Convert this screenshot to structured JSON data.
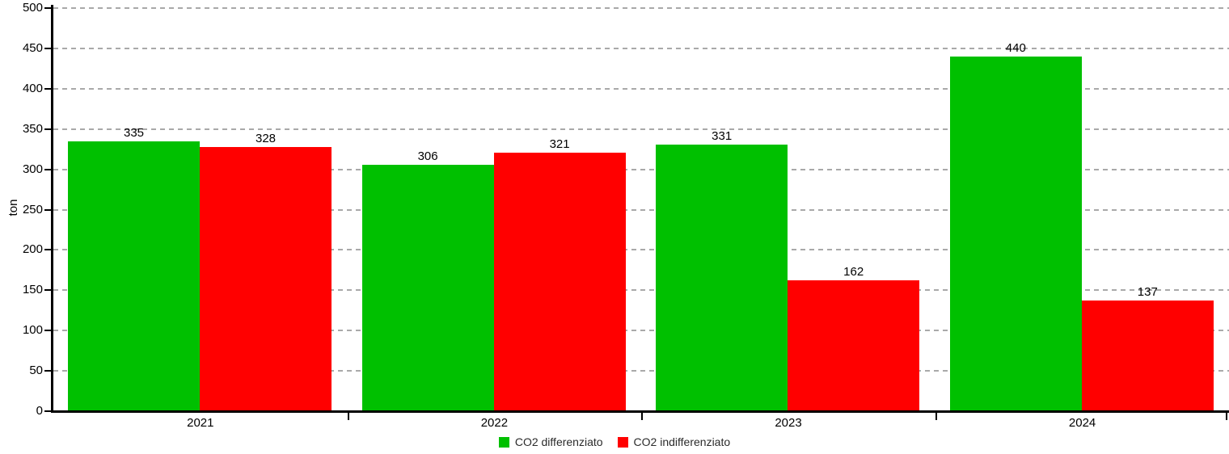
{
  "chart_data": {
    "type": "bar",
    "title": "",
    "categories": [
      "2021",
      "2022",
      "2023",
      "2024"
    ],
    "series": [
      {
        "name": "CO2 differenziato",
        "color": "#00c000",
        "values": [
          335,
          306,
          331,
          440
        ]
      },
      {
        "name": "CO2 indifferenziato",
        "color": "#ff0000",
        "values": [
          328,
          321,
          162,
          137
        ]
      }
    ],
    "ylabel": "ton",
    "ylim": [
      0,
      500
    ],
    "ytick_step": 50,
    "yticks": [
      "0",
      "50",
      "100",
      "150",
      "200",
      "250",
      "300",
      "350",
      "400",
      "450",
      "500"
    ],
    "grid": "horizontal-dashed",
    "legend_position": "bottom-center",
    "value_labels_shown": true
  },
  "colors": {
    "grid": "#a9a9a9",
    "axis": "#000000",
    "text": "#000000",
    "background": "#ffffff"
  }
}
